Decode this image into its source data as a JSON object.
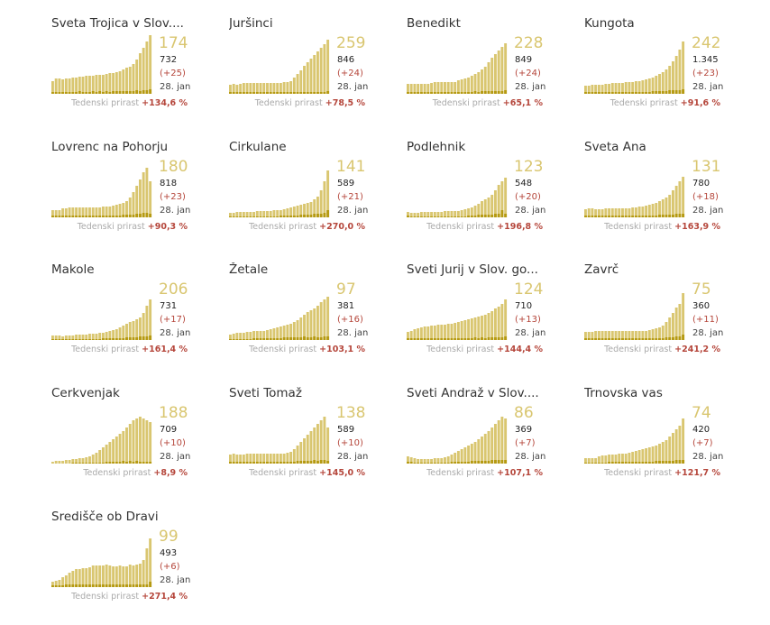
{
  "colors": {
    "bar_light": "#d9c670",
    "bar_dark": "#b59a12",
    "big_number": "#d9c670",
    "increase": "#b5463b",
    "label_grey": "#aaaaaa"
  },
  "chart_data": [
    {
      "type": "bar",
      "title": "Sveta Trojica v Slov....",
      "current": "174",
      "total": "732",
      "increase": "(+25)",
      "date": "28. jan",
      "growth_label": "Tedenski prirast",
      "growth": "+134,6 %",
      "values": [
        14,
        17,
        17,
        16,
        17,
        17,
        18,
        18,
        19,
        19,
        20,
        20,
        20,
        21,
        21,
        21,
        22,
        23,
        23,
        24,
        25,
        27,
        29,
        30,
        33,
        38,
        45,
        51,
        58,
        65
      ],
      "new": [
        2,
        2,
        2,
        2,
        2,
        2,
        2,
        2,
        3,
        2,
        2,
        2,
        3,
        2,
        3,
        2,
        3,
        2,
        3,
        3,
        3,
        3,
        3,
        3,
        3,
        4,
        3,
        4,
        4,
        5
      ]
    },
    {
      "type": "bar",
      "title": "Juršinci",
      "current": "259",
      "total": "846",
      "increase": "(+24)",
      "date": "28. jan",
      "growth_label": "Tedenski prirast",
      "growth": "+78,5 %",
      "values": [
        10,
        11,
        10,
        11,
        12,
        12,
        12,
        12,
        12,
        12,
        12,
        12,
        12,
        12,
        12,
        12,
        13,
        13,
        14,
        18,
        22,
        26,
        31,
        35,
        39,
        43,
        47,
        51,
        55,
        60
      ],
      "new": [
        2,
        2,
        2,
        2,
        2,
        2,
        2,
        2,
        2,
        2,
        2,
        2,
        2,
        2,
        2,
        2,
        2,
        2,
        2,
        2,
        2,
        2,
        2,
        2,
        2,
        2,
        2,
        2,
        2,
        3
      ]
    },
    {
      "type": "bar",
      "title": "Benedikt",
      "current": "228",
      "total": "849",
      "increase": "(+24)",
      "date": "28. jan",
      "growth_label": "Tedenski prirast",
      "growth": "+65,1 %",
      "values": [
        11,
        11,
        11,
        11,
        11,
        11,
        11,
        12,
        13,
        13,
        13,
        13,
        13,
        13,
        13,
        15,
        16,
        17,
        18,
        20,
        22,
        24,
        27,
        30,
        35,
        40,
        44,
        48,
        52,
        56
      ],
      "new": [
        2,
        2,
        2,
        2,
        2,
        2,
        2,
        2,
        2,
        2,
        2,
        2,
        2,
        2,
        2,
        2,
        2,
        2,
        2,
        2,
        3,
        2,
        3,
        3,
        3,
        3,
        3,
        3,
        3,
        4
      ]
    },
    {
      "type": "bar",
      "title": "Kungota",
      "current": "242",
      "total": "1.345",
      "increase": "(+23)",
      "date": "28. jan",
      "growth_label": "Tedenski prirast",
      "growth": "+91,6 %",
      "values": [
        9,
        9,
        10,
        10,
        10,
        10,
        11,
        11,
        12,
        12,
        12,
        12,
        13,
        13,
        13,
        14,
        14,
        15,
        16,
        17,
        18,
        20,
        22,
        24,
        27,
        31,
        36,
        42,
        49,
        58
      ],
      "new": [
        2,
        2,
        2,
        2,
        2,
        2,
        2,
        2,
        2,
        2,
        2,
        2,
        2,
        2,
        2,
        2,
        2,
        2,
        2,
        2,
        3,
        3,
        3,
        3,
        3,
        4,
        4,
        4,
        4,
        5
      ]
    },
    {
      "type": "bar",
      "title": "Lovrenc na Pohorju",
      "current": "180",
      "total": "818",
      "increase": "(+23)",
      "date": "28. jan",
      "growth_label": "Tedenski prirast",
      "growth": "+90,3 %",
      "values": [
        8,
        8,
        8,
        10,
        10,
        11,
        11,
        11,
        11,
        11,
        11,
        11,
        11,
        11,
        11,
        12,
        12,
        12,
        13,
        14,
        15,
        16,
        18,
        22,
        28,
        35,
        42,
        50,
        55,
        40
      ],
      "new": [
        2,
        2,
        2,
        2,
        2,
        2,
        2,
        2,
        2,
        2,
        2,
        2,
        2,
        2,
        2,
        2,
        2,
        2,
        2,
        2,
        2,
        3,
        3,
        3,
        3,
        4,
        4,
        5,
        5,
        4
      ]
    },
    {
      "type": "bar",
      "title": "Cirkulane",
      "current": "141",
      "total": "589",
      "increase": "(+21)",
      "date": "28. jan",
      "growth_label": "Tedenski prirast",
      "growth": "+270,0 %",
      "values": [
        5,
        5,
        6,
        6,
        6,
        6,
        6,
        6,
        7,
        7,
        7,
        7,
        7,
        8,
        8,
        8,
        9,
        10,
        11,
        12,
        13,
        14,
        15,
        16,
        17,
        20,
        23,
        30,
        40,
        52
      ],
      "new": [
        1,
        1,
        1,
        1,
        1,
        1,
        1,
        1,
        1,
        1,
        1,
        1,
        1,
        1,
        1,
        2,
        2,
        2,
        2,
        2,
        2,
        3,
        3,
        3,
        3,
        4,
        4,
        4,
        5,
        8
      ]
    },
    {
      "type": "bar",
      "title": "Podlehnik",
      "current": "123",
      "total": "548",
      "increase": "(+20)",
      "date": "28. jan",
      "growth_label": "Tedenski prirast",
      "growth": "+196,8 %",
      "values": [
        6,
        5,
        5,
        5,
        6,
        6,
        6,
        6,
        6,
        6,
        6,
        7,
        7,
        7,
        7,
        7,
        8,
        9,
        10,
        11,
        13,
        15,
        18,
        20,
        22,
        25,
        30,
        36,
        40,
        44
      ],
      "new": [
        2,
        1,
        1,
        1,
        1,
        1,
        1,
        1,
        1,
        1,
        1,
        1,
        1,
        1,
        1,
        1,
        1,
        1,
        2,
        2,
        2,
        3,
        3,
        3,
        3,
        3,
        4,
        4,
        8,
        4
      ]
    },
    {
      "type": "bar",
      "title": "Sveta Ana",
      "current": "131",
      "total": "780",
      "increase": "(+18)",
      "date": "28. jan",
      "growth_label": "Tedenski prirast",
      "growth": "+163,9 %",
      "values": [
        9,
        10,
        10,
        9,
        9,
        9,
        10,
        10,
        10,
        10,
        10,
        10,
        10,
        10,
        11,
        11,
        12,
        12,
        13,
        14,
        15,
        16,
        18,
        20,
        22,
        25,
        30,
        35,
        40,
        45
      ],
      "new": [
        2,
        2,
        2,
        2,
        2,
        2,
        2,
        2,
        2,
        2,
        2,
        2,
        2,
        2,
        2,
        2,
        2,
        2,
        2,
        2,
        2,
        2,
        3,
        3,
        3,
        3,
        3,
        4,
        4,
        4
      ]
    },
    {
      "type": "bar",
      "title": "Makole",
      "current": "206",
      "total": "731",
      "increase": "(+17)",
      "date": "28. jan",
      "growth_label": "Tedenski prirast",
      "growth": "+161,4 %",
      "values": [
        5,
        5,
        5,
        4,
        5,
        5,
        5,
        6,
        6,
        6,
        6,
        7,
        7,
        7,
        8,
        8,
        9,
        10,
        11,
        12,
        14,
        16,
        18,
        20,
        21,
        23,
        25,
        30,
        38,
        45
      ],
      "new": [
        1,
        1,
        1,
        1,
        1,
        1,
        1,
        1,
        1,
        1,
        1,
        1,
        1,
        1,
        1,
        2,
        2,
        2,
        2,
        2,
        2,
        2,
        3,
        3,
        3,
        3,
        4,
        4,
        4,
        5
      ]
    },
    {
      "type": "bar",
      "title": "Žetale",
      "current": "97",
      "total": "381",
      "increase": "(+16)",
      "date": "28. jan",
      "growth_label": "Tedenski prirast",
      "growth": "+103,1 %",
      "values": [
        6,
        7,
        8,
        8,
        8,
        9,
        9,
        10,
        10,
        10,
        10,
        11,
        12,
        13,
        14,
        15,
        16,
        17,
        18,
        20,
        22,
        25,
        28,
        31,
        33,
        35,
        38,
        42,
        45,
        48
      ],
      "new": [
        1,
        1,
        1,
        1,
        1,
        1,
        1,
        2,
        2,
        2,
        2,
        2,
        2,
        2,
        2,
        2,
        3,
        3,
        3,
        3,
        3,
        3,
        4,
        3,
        3,
        4,
        3,
        3,
        4,
        4
      ]
    },
    {
      "type": "bar",
      "title": "Sveti Jurij v Slov. go...",
      "current": "124",
      "total": "710",
      "increase": "(+13)",
      "date": "28. jan",
      "growth_label": "Tedenski prirast",
      "growth": "+144,4 %",
      "values": [
        9,
        10,
        12,
        13,
        14,
        15,
        15,
        16,
        16,
        17,
        17,
        17,
        18,
        18,
        19,
        20,
        21,
        22,
        23,
        24,
        25,
        26,
        27,
        28,
        30,
        32,
        35,
        37,
        40,
        45
      ],
      "new": [
        2,
        2,
        2,
        2,
        2,
        2,
        2,
        2,
        2,
        2,
        2,
        2,
        2,
        2,
        2,
        2,
        2,
        2,
        2,
        2,
        3,
        2,
        3,
        2,
        3,
        3,
        3,
        3,
        3,
        4
      ]
    },
    {
      "type": "bar",
      "title": "Zavrč",
      "current": "75",
      "total": "360",
      "increase": "(+11)",
      "date": "28. jan",
      "growth_label": "Tedenski prirast",
      "growth": "+241,2 %",
      "values": [
        9,
        9,
        9,
        10,
        10,
        10,
        10,
        10,
        10,
        10,
        10,
        10,
        10,
        10,
        10,
        10,
        10,
        10,
        10,
        11,
        12,
        13,
        14,
        16,
        20,
        25,
        30,
        36,
        40,
        52
      ],
      "new": [
        2,
        2,
        2,
        2,
        2,
        2,
        2,
        2,
        2,
        2,
        2,
        2,
        2,
        2,
        2,
        2,
        2,
        2,
        2,
        2,
        2,
        2,
        2,
        2,
        3,
        3,
        3,
        4,
        4,
        6
      ]
    },
    {
      "type": "bar",
      "title": "Cerkvenjak",
      "current": "188",
      "total": "709",
      "increase": "(+10)",
      "date": "28. jan",
      "growth_label": "Tedenski prirast",
      "growth": "+8,9 %",
      "values": [
        2,
        3,
        3,
        3,
        4,
        4,
        5,
        5,
        6,
        6,
        7,
        8,
        10,
        12,
        15,
        18,
        21,
        24,
        27,
        30,
        33,
        36,
        40,
        44,
        48,
        50,
        52,
        50,
        48,
        46
      ],
      "new": [
        0,
        0,
        0,
        0,
        0,
        0,
        1,
        1,
        1,
        1,
        1,
        1,
        1,
        1,
        1,
        1,
        2,
        2,
        2,
        2,
        2,
        3,
        2,
        3,
        2,
        3,
        2,
        2,
        2,
        2
      ]
    },
    {
      "type": "bar",
      "title": "Sveti Tomaž",
      "current": "138",
      "total": "589",
      "increase": "(+10)",
      "date": "28. jan",
      "growth_label": "Tedenski prirast",
      "growth": "+145,0 %",
      "values": [
        10,
        11,
        10,
        10,
        10,
        11,
        11,
        11,
        11,
        11,
        11,
        11,
        11,
        11,
        11,
        11,
        11,
        12,
        13,
        16,
        20,
        24,
        28,
        32,
        36,
        40,
        44,
        48,
        52,
        40
      ],
      "new": [
        2,
        2,
        2,
        2,
        2,
        2,
        2,
        2,
        2,
        2,
        2,
        2,
        2,
        2,
        2,
        2,
        2,
        2,
        2,
        2,
        3,
        3,
        3,
        3,
        3,
        4,
        3,
        4,
        4,
        3
      ]
    },
    {
      "type": "bar",
      "title": "Sveti Andraž v Slov....",
      "current": "86",
      "total": "369",
      "increase": "(+7)",
      "date": "28. jan",
      "growth_label": "Tedenski prirast",
      "growth": "+107,1 %",
      "values": [
        8,
        7,
        6,
        5,
        5,
        5,
        5,
        5,
        6,
        6,
        6,
        7,
        8,
        10,
        12,
        14,
        16,
        18,
        20,
        22,
        24,
        27,
        30,
        33,
        36,
        40,
        44,
        48,
        52,
        50
      ],
      "new": [
        2,
        2,
        1,
        1,
        1,
        1,
        1,
        1,
        1,
        1,
        1,
        1,
        1,
        2,
        2,
        2,
        2,
        2,
        2,
        3,
        3,
        3,
        3,
        3,
        3,
        4,
        4,
        4,
        4,
        4
      ]
    },
    {
      "type": "bar",
      "title": "Trnovska vas",
      "current": "74",
      "total": "420",
      "increase": "(+7)",
      "date": "28. jan",
      "growth_label": "Tedenski prirast",
      "growth": "+121,7 %",
      "values": [
        6,
        6,
        6,
        6,
        8,
        9,
        9,
        10,
        10,
        10,
        11,
        11,
        11,
        12,
        13,
        14,
        15,
        16,
        17,
        18,
        19,
        20,
        22,
        24,
        26,
        30,
        34,
        38,
        42,
        50
      ],
      "new": [
        1,
        1,
        1,
        1,
        1,
        1,
        1,
        2,
        2,
        2,
        2,
        2,
        2,
        2,
        2,
        2,
        2,
        2,
        2,
        2,
        2,
        3,
        3,
        3,
        3,
        3,
        3,
        4,
        4,
        4
      ]
    },
    {
      "type": "bar",
      "title": "Središče ob Dravi",
      "current": "99",
      "total": "493",
      "increase": "(+6)",
      "date": "28. jan",
      "growth_label": "Tedenski prirast",
      "growth": "+271,4 %",
      "values": [
        6,
        7,
        8,
        11,
        13,
        16,
        18,
        20,
        20,
        21,
        21,
        22,
        24,
        24,
        24,
        24,
        25,
        24,
        23,
        23,
        24,
        23,
        23,
        25,
        24,
        25,
        26,
        30,
        43,
        54
      ],
      "new": [
        2,
        2,
        2,
        2,
        3,
        3,
        3,
        3,
        3,
        3,
        3,
        3,
        3,
        3,
        3,
        3,
        3,
        3,
        3,
        3,
        3,
        3,
        3,
        3,
        3,
        3,
        3,
        3,
        3,
        6
      ]
    }
  ]
}
